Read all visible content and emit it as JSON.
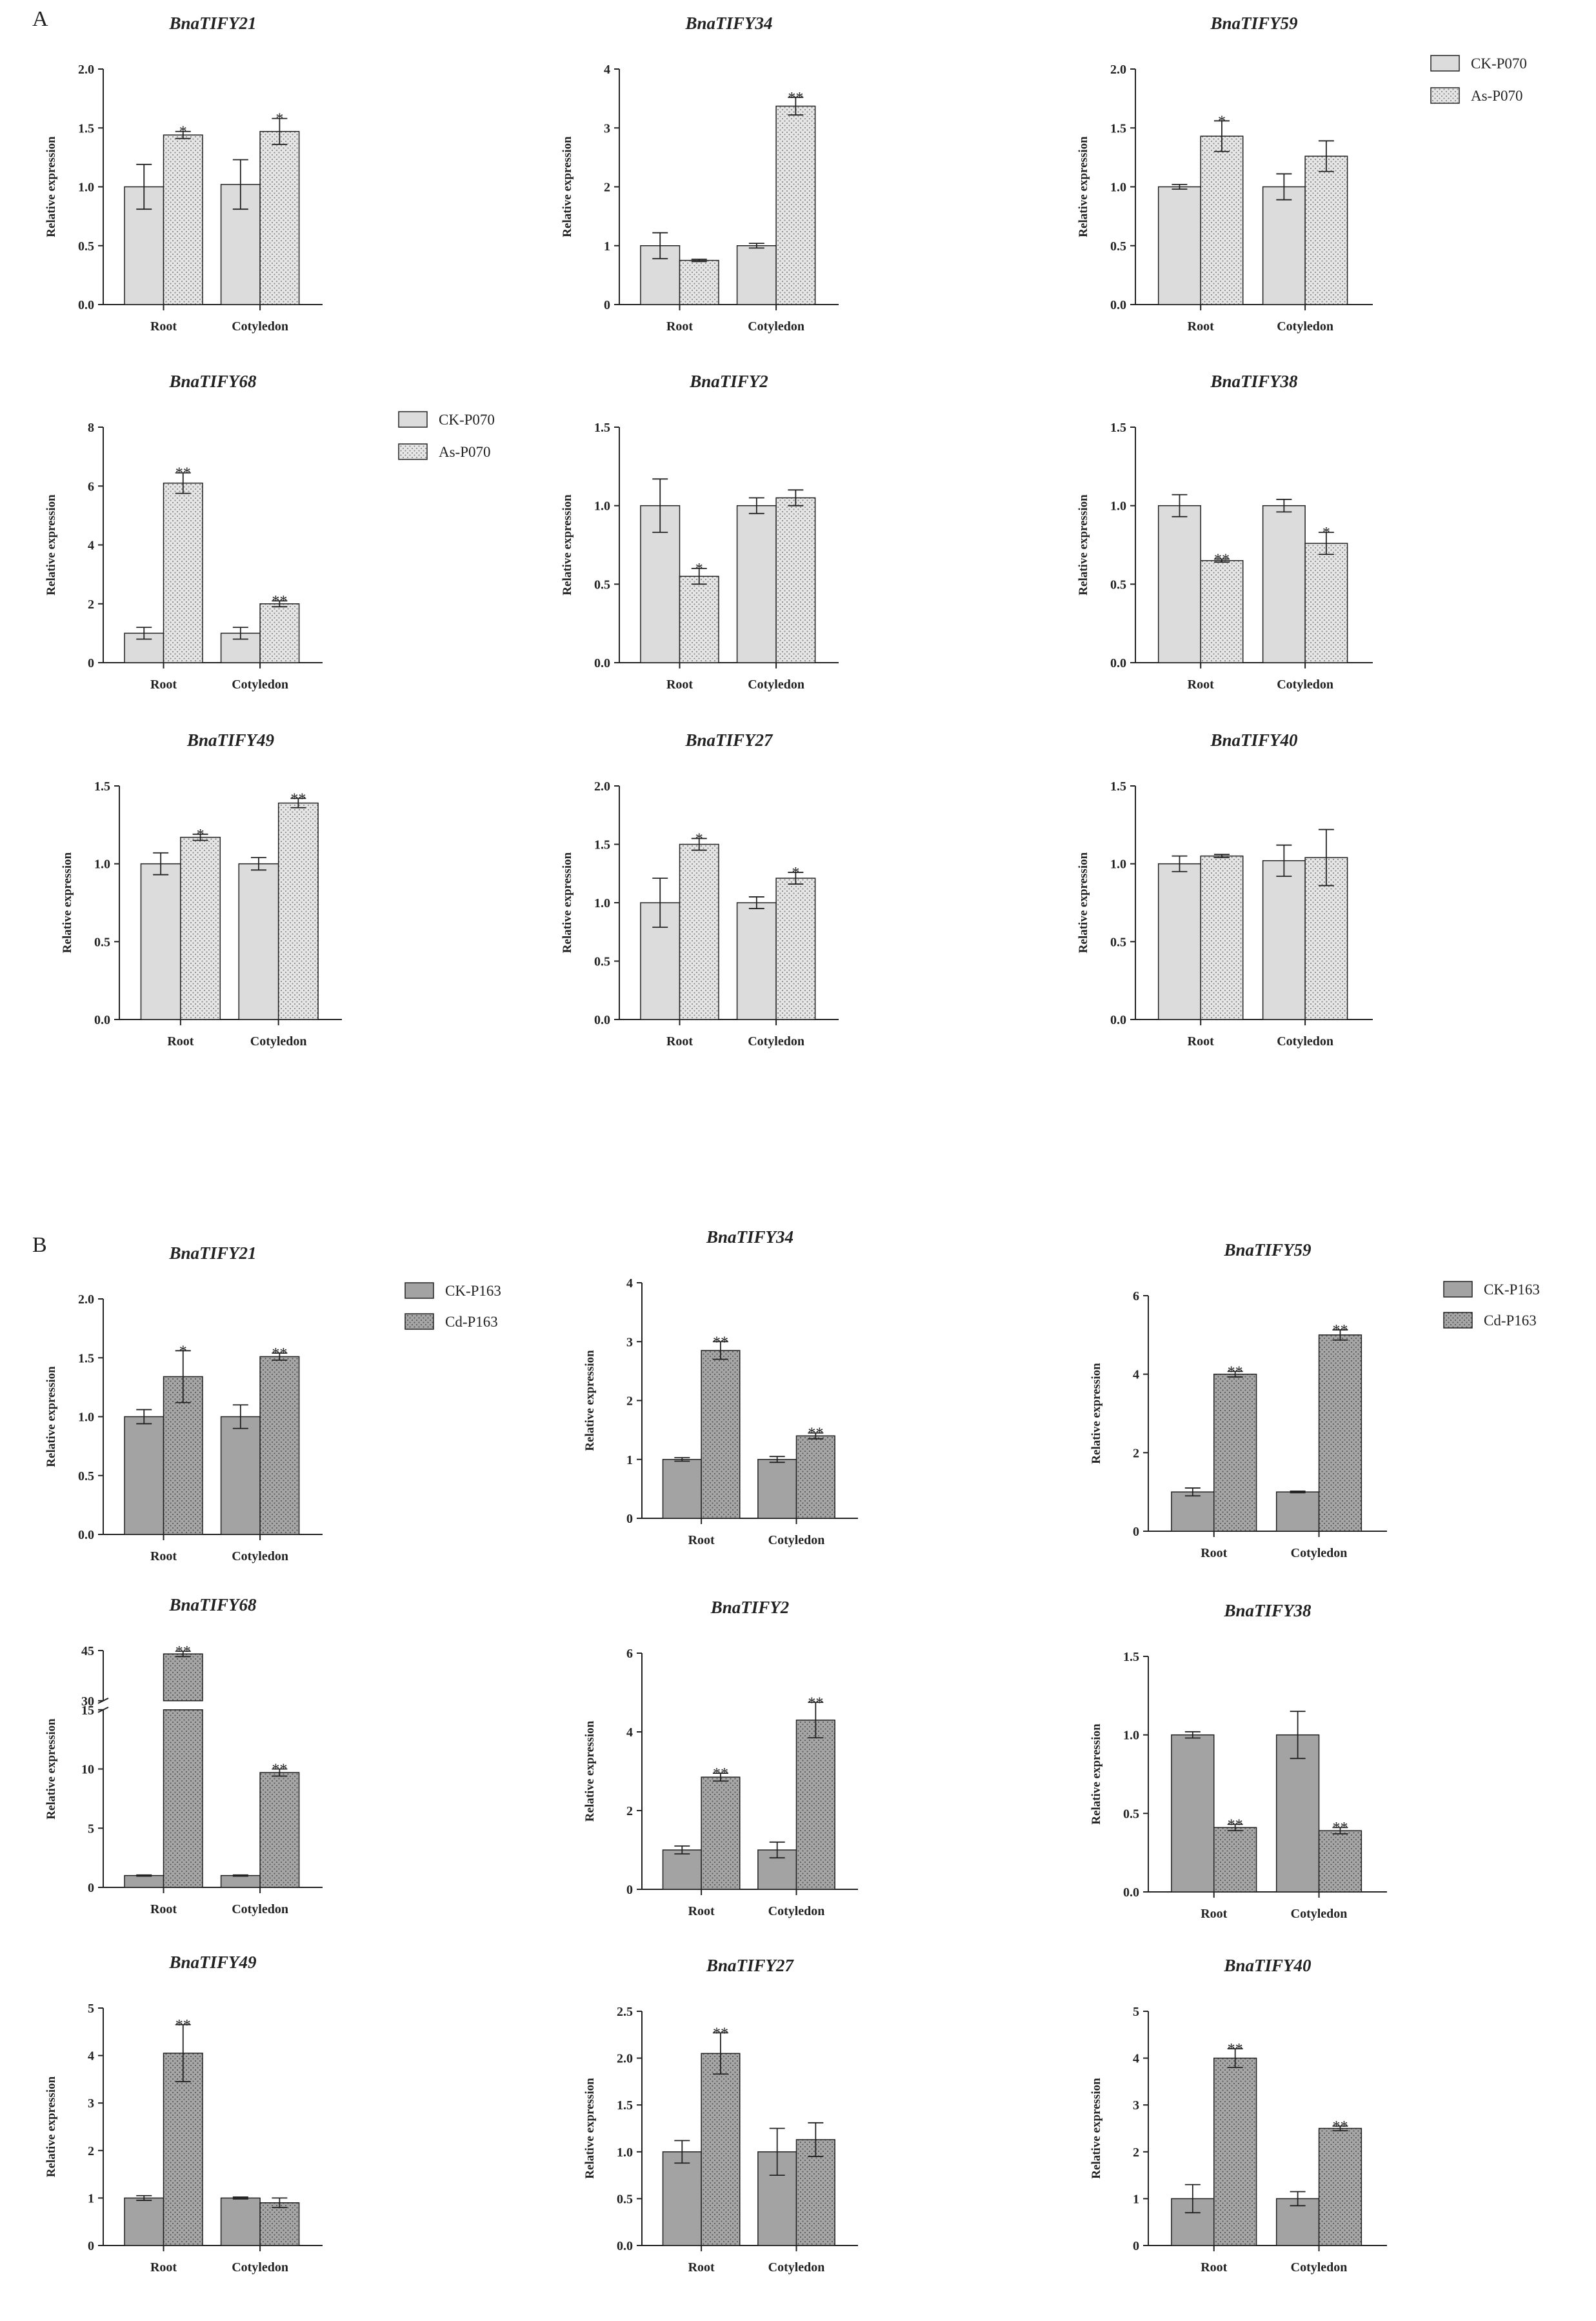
{
  "panels": [
    {
      "label": "A",
      "legend": [
        "CK-P070",
        "As-P070"
      ]
    },
    {
      "label": "B",
      "legend": [
        "CK-P163",
        "Cd-P163"
      ]
    }
  ],
  "ylabel": "Relative expression",
  "categories": [
    "Root",
    "Cotyledon"
  ],
  "chart_data": [
    {
      "type": "bar",
      "panel": "A",
      "title": "BnaTIFY21",
      "ylabel": "Relative expression",
      "categories": [
        "Root",
        "Cotyledon"
      ],
      "ylim": [
        0,
        2.0
      ],
      "yticks": [
        "0.0",
        "0.5",
        "1.0",
        "1.5",
        "2.0"
      ],
      "series": [
        {
          "name": "CK-P070",
          "values": [
            1.0,
            1.02
          ],
          "errors": [
            0.19,
            0.21
          ]
        },
        {
          "name": "As-P070",
          "values": [
            1.44,
            1.47
          ],
          "errors": [
            0.03,
            0.11
          ]
        }
      ],
      "significance": [
        [
          "",
          ""
        ],
        [
          "*",
          "*"
        ]
      ]
    },
    {
      "type": "bar",
      "panel": "A",
      "title": "BnaTIFY34",
      "ylabel": "Relative expression",
      "categories": [
        "Root",
        "Cotyledon"
      ],
      "ylim": [
        0,
        4
      ],
      "yticks": [
        "0",
        "1",
        "2",
        "3",
        "4"
      ],
      "series": [
        {
          "name": "CK-P070",
          "values": [
            1.0,
            1.0
          ],
          "errors": [
            0.22,
            0.04
          ]
        },
        {
          "name": "As-P070",
          "values": [
            0.75,
            3.37
          ],
          "errors": [
            0.02,
            0.15
          ]
        }
      ],
      "significance": [
        [
          "",
          ""
        ],
        [
          "",
          "**"
        ]
      ]
    },
    {
      "type": "bar",
      "panel": "A",
      "title": "BnaTIFY59",
      "ylabel": "Relative expression",
      "categories": [
        "Root",
        "Cotyledon"
      ],
      "ylim": [
        0,
        2.0
      ],
      "yticks": [
        "0.0",
        "0.5",
        "1.0",
        "1.5",
        "2.0"
      ],
      "series": [
        {
          "name": "CK-P070",
          "values": [
            1.0,
            1.0
          ],
          "errors": [
            0.02,
            0.11
          ]
        },
        {
          "name": "As-P070",
          "values": [
            1.43,
            1.26
          ],
          "errors": [
            0.13,
            0.13
          ]
        }
      ],
      "significance": [
        [
          "",
          ""
        ],
        [
          "*",
          ""
        ]
      ]
    },
    {
      "type": "bar",
      "panel": "A",
      "title": "BnaTIFY68",
      "ylabel": "Relative expression",
      "categories": [
        "Root",
        "Cotyledon"
      ],
      "ylim": [
        0,
        8
      ],
      "yticks": [
        "0",
        "2",
        "4",
        "6",
        "8"
      ],
      "series": [
        {
          "name": "CK-P070",
          "values": [
            1.0,
            1.0
          ],
          "errors": [
            0.2,
            0.2
          ]
        },
        {
          "name": "As-P070",
          "values": [
            6.1,
            2.0
          ],
          "errors": [
            0.35,
            0.1
          ]
        }
      ],
      "significance": [
        [
          "",
          ""
        ],
        [
          "**",
          "**"
        ]
      ]
    },
    {
      "type": "bar",
      "panel": "A",
      "title": "BnaTIFY2",
      "ylabel": "Relative expression",
      "categories": [
        "Root",
        "Cotyledon"
      ],
      "ylim": [
        0,
        1.5
      ],
      "yticks": [
        "0.0",
        "0.5",
        "1.0",
        "1.5"
      ],
      "series": [
        {
          "name": "CK-P070",
          "values": [
            1.0,
            1.0
          ],
          "errors": [
            0.17,
            0.05
          ]
        },
        {
          "name": "As-P070",
          "values": [
            0.55,
            1.05
          ],
          "errors": [
            0.05,
            0.05
          ]
        }
      ],
      "significance": [
        [
          "",
          ""
        ],
        [
          "*",
          ""
        ]
      ]
    },
    {
      "type": "bar",
      "panel": "A",
      "title": "BnaTIFY38",
      "ylabel": "Relative expression",
      "categories": [
        "Root",
        "Cotyledon"
      ],
      "ylim": [
        0,
        1.5
      ],
      "yticks": [
        "0.0",
        "0.5",
        "1.0",
        "1.5"
      ],
      "series": [
        {
          "name": "CK-P070",
          "values": [
            1.0,
            1.0
          ],
          "errors": [
            0.07,
            0.04
          ]
        },
        {
          "name": "As-P070",
          "values": [
            0.65,
            0.76
          ],
          "errors": [
            0.01,
            0.07
          ]
        }
      ],
      "significance": [
        [
          "",
          ""
        ],
        [
          "**",
          "*"
        ]
      ]
    },
    {
      "type": "bar",
      "panel": "A",
      "title": "BnaTIFY49",
      "ylabel": "Relative expression",
      "categories": [
        "Root",
        "Cotyledon"
      ],
      "ylim": [
        0,
        1.5
      ],
      "yticks": [
        "0.0",
        "0.5",
        "1.0",
        "1.5"
      ],
      "series": [
        {
          "name": "CK-P070",
          "values": [
            1.0,
            1.0
          ],
          "errors": [
            0.07,
            0.04
          ]
        },
        {
          "name": "As-P070",
          "values": [
            1.17,
            1.39
          ],
          "errors": [
            0.02,
            0.03
          ]
        }
      ],
      "significance": [
        [
          "",
          ""
        ],
        [
          "*",
          "**"
        ]
      ]
    },
    {
      "type": "bar",
      "panel": "A",
      "title": "BnaTIFY27",
      "ylabel": "Relative expression",
      "categories": [
        "Root",
        "Cotyledon"
      ],
      "ylim": [
        0,
        2.0
      ],
      "yticks": [
        "0.0",
        "0.5",
        "1.0",
        "1.5",
        "2.0"
      ],
      "series": [
        {
          "name": "CK-P070",
          "values": [
            1.0,
            1.0
          ],
          "errors": [
            0.21,
            0.05
          ]
        },
        {
          "name": "As-P070",
          "values": [
            1.5,
            1.21
          ],
          "errors": [
            0.05,
            0.05
          ]
        }
      ],
      "significance": [
        [
          "",
          ""
        ],
        [
          "*",
          "*"
        ]
      ]
    },
    {
      "type": "bar",
      "panel": "A",
      "title": "BnaTIFY40",
      "ylabel": "Relative expression",
      "categories": [
        "Root",
        "Cotyledon"
      ],
      "ylim": [
        0,
        1.5
      ],
      "yticks": [
        "0.0",
        "0.5",
        "1.0",
        "1.5"
      ],
      "series": [
        {
          "name": "CK-P070",
          "values": [
            1.0,
            1.02
          ],
          "errors": [
            0.05,
            0.1
          ]
        },
        {
          "name": "As-P070",
          "values": [
            1.05,
            1.04
          ],
          "errors": [
            0.01,
            0.18
          ]
        }
      ],
      "significance": [
        [
          "",
          ""
        ],
        [
          "",
          ""
        ]
      ]
    },
    {
      "type": "bar",
      "panel": "B",
      "title": "BnaTIFY21",
      "ylabel": "Relative expression",
      "categories": [
        "Root",
        "Cotyledon"
      ],
      "ylim": [
        0,
        2.0
      ],
      "yticks": [
        "0.0",
        "0.5",
        "1.0",
        "1.5",
        "2.0"
      ],
      "series": [
        {
          "name": "CK-P163",
          "values": [
            1.0,
            1.0
          ],
          "errors": [
            0.06,
            0.1
          ]
        },
        {
          "name": "Cd-P163",
          "values": [
            1.34,
            1.51
          ],
          "errors": [
            0.22,
            0.03
          ]
        }
      ],
      "significance": [
        [
          "",
          ""
        ],
        [
          "*",
          "**"
        ]
      ]
    },
    {
      "type": "bar",
      "panel": "B",
      "title": "BnaTIFY34",
      "ylabel": "Relative expression",
      "categories": [
        "Root",
        "Cotyledon"
      ],
      "ylim": [
        0,
        4
      ],
      "yticks": [
        "0",
        "1",
        "2",
        "3",
        "4"
      ],
      "series": [
        {
          "name": "CK-P163",
          "values": [
            1.0,
            1.0
          ],
          "errors": [
            0.03,
            0.05
          ]
        },
        {
          "name": "Cd-P163",
          "values": [
            2.85,
            1.4
          ],
          "errors": [
            0.15,
            0.05
          ]
        }
      ],
      "significance": [
        [
          "",
          ""
        ],
        [
          "**",
          "**"
        ]
      ]
    },
    {
      "type": "bar",
      "panel": "B",
      "title": "BnaTIFY59",
      "ylabel": "Relative expression",
      "categories": [
        "Root",
        "Cotyledon"
      ],
      "ylim": [
        0,
        6
      ],
      "yticks": [
        "0",
        "2",
        "4",
        "6"
      ],
      "series": [
        {
          "name": "CK-P163",
          "values": [
            1.0,
            1.0
          ],
          "errors": [
            0.1,
            0.02
          ]
        },
        {
          "name": "Cd-P163",
          "values": [
            4.0,
            5.0
          ],
          "errors": [
            0.07,
            0.13
          ]
        }
      ],
      "significance": [
        [
          "",
          ""
        ],
        [
          "**",
          "**"
        ]
      ]
    },
    {
      "type": "bar",
      "panel": "B",
      "title": "BnaTIFY68",
      "ylabel": "Relative expression",
      "categories": [
        "Root",
        "Cotyledon"
      ],
      "ylim": [
        0,
        45
      ],
      "yticks": [
        "0",
        "5",
        "10",
        "15",
        "30",
        "45"
      ],
      "axis_break": [
        15,
        30
      ],
      "series": [
        {
          "name": "CK-P163",
          "values": [
            1.0,
            1.0
          ],
          "errors": [
            0.05,
            0.05
          ]
        },
        {
          "name": "Cd-P163",
          "values": [
            44.0,
            9.7
          ],
          "errors": [
            0.8,
            0.3
          ]
        }
      ],
      "significance": [
        [
          "",
          ""
        ],
        [
          "**",
          "**"
        ]
      ]
    },
    {
      "type": "bar",
      "panel": "B",
      "title": "BnaTIFY2",
      "ylabel": "Relative expression",
      "categories": [
        "Root",
        "Cotyledon"
      ],
      "ylim": [
        0,
        6
      ],
      "yticks": [
        "0",
        "2",
        "4",
        "6"
      ],
      "series": [
        {
          "name": "CK-P163",
          "values": [
            1.0,
            1.0
          ],
          "errors": [
            0.1,
            0.2
          ]
        },
        {
          "name": "Cd-P163",
          "values": [
            2.85,
            4.3
          ],
          "errors": [
            0.1,
            0.45
          ]
        }
      ],
      "significance": [
        [
          "",
          ""
        ],
        [
          "**",
          "**"
        ]
      ]
    },
    {
      "type": "bar",
      "panel": "B",
      "title": "BnaTIFY38",
      "ylabel": "Relative expression",
      "categories": [
        "Root",
        "Cotyledon"
      ],
      "ylim": [
        0,
        1.5
      ],
      "yticks": [
        "0.0",
        "0.5",
        "1.0",
        "1.5"
      ],
      "series": [
        {
          "name": "CK-P163",
          "values": [
            1.0,
            1.0
          ],
          "errors": [
            0.02,
            0.15
          ]
        },
        {
          "name": "Cd-P163",
          "values": [
            0.41,
            0.39
          ],
          "errors": [
            0.02,
            0.02
          ]
        }
      ],
      "significance": [
        [
          "",
          ""
        ],
        [
          "**",
          "**"
        ]
      ]
    },
    {
      "type": "bar",
      "panel": "B",
      "title": "BnaTIFY49",
      "ylabel": "Relative expression",
      "categories": [
        "Root",
        "Cotyledon"
      ],
      "ylim": [
        0,
        5
      ],
      "yticks": [
        "0",
        "1",
        "2",
        "3",
        "4",
        "5"
      ],
      "series": [
        {
          "name": "CK-P163",
          "values": [
            1.0,
            1.0
          ],
          "errors": [
            0.05,
            0.02
          ]
        },
        {
          "name": "Cd-P163",
          "values": [
            4.05,
            0.9
          ],
          "errors": [
            0.6,
            0.1
          ]
        }
      ],
      "significance": [
        [
          "",
          ""
        ],
        [
          "**",
          ""
        ]
      ]
    },
    {
      "type": "bar",
      "panel": "B",
      "title": "BnaTIFY27",
      "ylabel": "Relative expression",
      "categories": [
        "Root",
        "Cotyledon"
      ],
      "ylim": [
        0,
        2.5
      ],
      "yticks": [
        "0.0",
        "0.5",
        "1.0",
        "1.5",
        "2.0",
        "2.5"
      ],
      "series": [
        {
          "name": "CK-P163",
          "values": [
            1.0,
            1.0
          ],
          "errors": [
            0.12,
            0.25
          ]
        },
        {
          "name": "Cd-P163",
          "values": [
            2.05,
            1.13
          ],
          "errors": [
            0.22,
            0.18
          ]
        }
      ],
      "significance": [
        [
          "",
          ""
        ],
        [
          "**",
          ""
        ]
      ]
    },
    {
      "type": "bar",
      "panel": "B",
      "title": "BnaTIFY40",
      "ylabel": "Relative expression",
      "categories": [
        "Root",
        "Cotyledon"
      ],
      "ylim": [
        0,
        5
      ],
      "yticks": [
        "0",
        "1",
        "2",
        "3",
        "4",
        "5"
      ],
      "series": [
        {
          "name": "CK-P163",
          "values": [
            1.0,
            1.0
          ],
          "errors": [
            0.3,
            0.15
          ]
        },
        {
          "name": "Cd-P163",
          "values": [
            4.0,
            2.5
          ],
          "errors": [
            0.2,
            0.05
          ]
        }
      ],
      "significance": [
        [
          "",
          ""
        ],
        [
          "**",
          "**"
        ]
      ]
    }
  ],
  "colors": {
    "A_control": "#dcdcdc",
    "A_treated": "#d9d9d9",
    "B_control": "#a3a3a3",
    "B_treated": "#9b9b9b",
    "ink": "#222222"
  }
}
